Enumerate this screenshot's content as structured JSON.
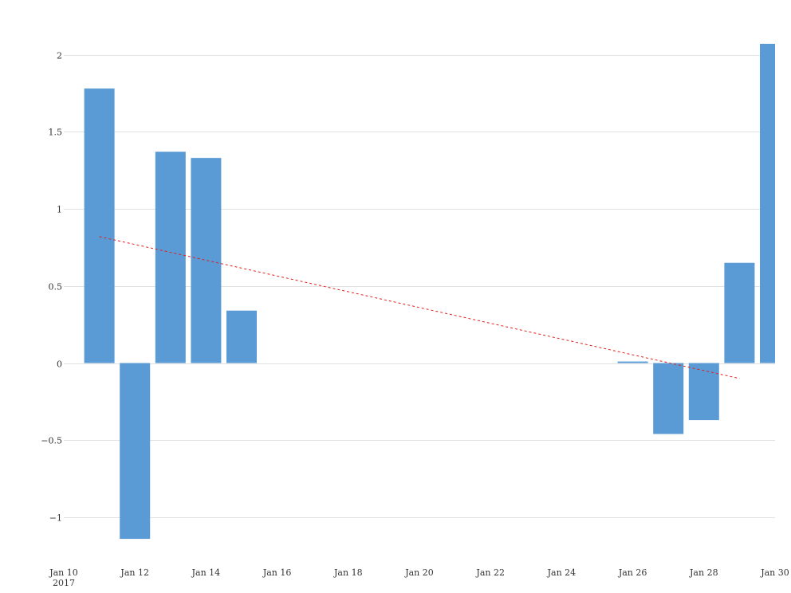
{
  "chart_data": {
    "type": "bar",
    "title": "",
    "xlabel": "",
    "ylabel": "",
    "ylim": [
      -1.25,
      2.2
    ],
    "x_range": [
      "2017-01-10",
      "2017-01-30"
    ],
    "y_ticks": [
      -1,
      -0.5,
      0,
      0.5,
      1,
      1.5,
      2
    ],
    "y_tick_labels": [
      "−1",
      "−0.5",
      "0",
      "0.5",
      "1",
      "1.5",
      "2"
    ],
    "x_ticks": [
      {
        "day": 10,
        "label": "Jan 10",
        "sublabel": "2017"
      },
      {
        "day": 12,
        "label": "Jan 12"
      },
      {
        "day": 14,
        "label": "Jan 14"
      },
      {
        "day": 16,
        "label": "Jan 16"
      },
      {
        "day": 18,
        "label": "Jan 18"
      },
      {
        "day": 20,
        "label": "Jan 20"
      },
      {
        "day": 22,
        "label": "Jan 22"
      },
      {
        "day": 24,
        "label": "Jan 24"
      },
      {
        "day": 26,
        "label": "Jan 26"
      },
      {
        "day": 28,
        "label": "Jan 28"
      },
      {
        "day": 30,
        "label": "Jan 30"
      }
    ],
    "grid": true,
    "series": [
      {
        "name": "value",
        "color": "#5b9bd5",
        "points": [
          {
            "day": 11,
            "value": 1.78
          },
          {
            "day": 12,
            "value": -1.14
          },
          {
            "day": 13,
            "value": 1.37
          },
          {
            "day": 14,
            "value": 1.33
          },
          {
            "day": 15,
            "value": 0.34
          },
          {
            "day": 26,
            "value": 0.01
          },
          {
            "day": 27,
            "value": -0.46
          },
          {
            "day": 28,
            "value": -0.37
          },
          {
            "day": 29,
            "value": 0.65
          },
          {
            "day": 30,
            "value": 2.07
          }
        ]
      }
    ],
    "trendline": {
      "color": "#e0201a",
      "style": "dashed",
      "start": {
        "day": 11,
        "value": 0.82
      },
      "end": {
        "day": 29,
        "value": -0.1
      }
    }
  }
}
